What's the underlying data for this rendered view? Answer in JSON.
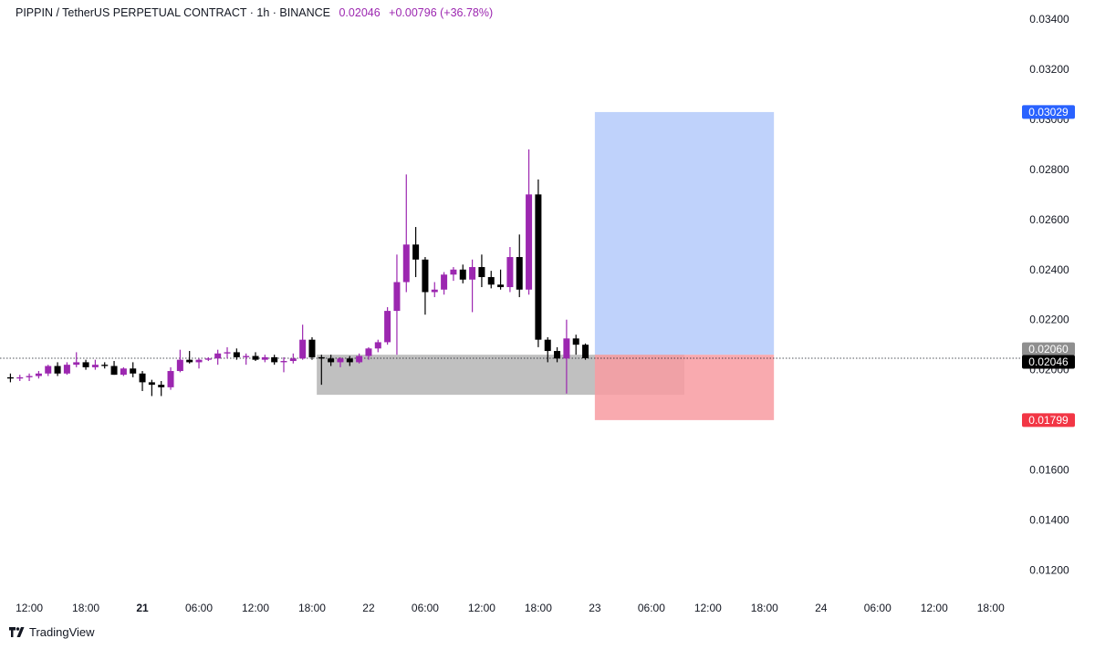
{
  "legend": {
    "symbol_text": "PIPPIN / TetherUS PERPETUAL CONTRACT · 1h · BINANCE",
    "last_price": "0.02046",
    "change": "+0.00796 (+36.78%)"
  },
  "footer": {
    "brand": "TradingView"
  },
  "colors": {
    "up": "#9c27b0",
    "down": "#000000",
    "profit_zone": "#bcd0fb",
    "loss_zone": "#f89ba1",
    "range_box": "#bdbdbd",
    "target_label": "#2962ff",
    "stop_label": "#f23645"
  },
  "chart_data": {
    "type": "candlestick",
    "title": "PIPPIN / TetherUS PERPETUAL CONTRACT · 1h · BINANCE",
    "x_ticks": [
      {
        "label": "12:00",
        "t": -24,
        "bold": false
      },
      {
        "label": "18:00",
        "t": -18,
        "bold": false
      },
      {
        "label": "21",
        "t": -12,
        "bold": true
      },
      {
        "label": "06:00",
        "t": -6,
        "bold": false
      },
      {
        "label": "12:00",
        "t": 0,
        "bold": false
      },
      {
        "label": "18:00",
        "t": 6,
        "bold": false
      },
      {
        "label": "22",
        "t": 12,
        "bold": false
      },
      {
        "label": "06:00",
        "t": 18,
        "bold": false
      },
      {
        "label": "12:00",
        "t": 24,
        "bold": false
      },
      {
        "label": "18:00",
        "t": 30,
        "bold": false
      },
      {
        "label": "23",
        "t": 36,
        "bold": false
      },
      {
        "label": "06:00",
        "t": 42,
        "bold": false
      },
      {
        "label": "12:00",
        "t": 48,
        "bold": false
      },
      {
        "label": "18:00",
        "t": 54,
        "bold": false
      },
      {
        "label": "24",
        "t": 60,
        "bold": false
      },
      {
        "label": "06:00",
        "t": 66,
        "bold": false
      },
      {
        "label": "12:00",
        "t": 72,
        "bold": false
      },
      {
        "label": "18:00",
        "t": 78,
        "bold": false
      }
    ],
    "y_ticks": [
      "0.03400",
      "0.03200",
      "0.03000",
      "0.02800",
      "0.02600",
      "0.02400",
      "0.02200",
      "0.02000",
      "0.01600",
      "0.01400",
      "0.01200"
    ],
    "y_values": [
      0.034,
      0.032,
      0.03,
      0.028,
      0.026,
      0.024,
      0.022,
      0.02,
      0.016,
      0.014,
      0.012
    ],
    "ylim": [
      0.011,
      0.0355
    ],
    "candles": [
      {
        "t": -26,
        "o": 0.0197,
        "h": 0.01985,
        "l": 0.0195,
        "c": 0.01965
      },
      {
        "t": -25,
        "o": 0.01965,
        "h": 0.0198,
        "l": 0.01955,
        "c": 0.0197
      },
      {
        "t": -24,
        "o": 0.0197,
        "h": 0.01985,
        "l": 0.01955,
        "c": 0.01975
      },
      {
        "t": -23,
        "o": 0.01975,
        "h": 0.01995,
        "l": 0.01965,
        "c": 0.01985
      },
      {
        "t": -22,
        "o": 0.01985,
        "h": 0.0202,
        "l": 0.01975,
        "c": 0.02015
      },
      {
        "t": -21,
        "o": 0.02015,
        "h": 0.0203,
        "l": 0.01975,
        "c": 0.01985
      },
      {
        "t": -20,
        "o": 0.01985,
        "h": 0.0203,
        "l": 0.0198,
        "c": 0.0202
      },
      {
        "t": -19,
        "o": 0.0202,
        "h": 0.0207,
        "l": 0.0201,
        "c": 0.0203
      },
      {
        "t": -18,
        "o": 0.0203,
        "h": 0.0204,
        "l": 0.02,
        "c": 0.0201
      },
      {
        "t": -17,
        "o": 0.0201,
        "h": 0.0204,
        "l": 0.02,
        "c": 0.0202
      },
      {
        "t": -16,
        "o": 0.0202,
        "h": 0.0203,
        "l": 0.02005,
        "c": 0.02015
      },
      {
        "t": -15,
        "o": 0.02015,
        "h": 0.02035,
        "l": 0.0198,
        "c": 0.0198
      },
      {
        "t": -14,
        "o": 0.0198,
        "h": 0.0201,
        "l": 0.01975,
        "c": 0.02005
      },
      {
        "t": -13,
        "o": 0.02005,
        "h": 0.0203,
        "l": 0.0197,
        "c": 0.01985
      },
      {
        "t": -12,
        "o": 0.01985,
        "h": 0.01995,
        "l": 0.01915,
        "c": 0.0195
      },
      {
        "t": -11,
        "o": 0.0195,
        "h": 0.0196,
        "l": 0.01895,
        "c": 0.0194
      },
      {
        "t": -10,
        "o": 0.0194,
        "h": 0.01955,
        "l": 0.01895,
        "c": 0.0193
      },
      {
        "t": -9,
        "o": 0.0193,
        "h": 0.0201,
        "l": 0.0192,
        "c": 0.01995
      },
      {
        "t": -8,
        "o": 0.01995,
        "h": 0.0208,
        "l": 0.0199,
        "c": 0.0204
      },
      {
        "t": -7,
        "o": 0.0204,
        "h": 0.02075,
        "l": 0.02025,
        "c": 0.0203
      },
      {
        "t": -6,
        "o": 0.0203,
        "h": 0.02045,
        "l": 0.02005,
        "c": 0.0204
      },
      {
        "t": -5,
        "o": 0.0204,
        "h": 0.0205,
        "l": 0.02035,
        "c": 0.02045
      },
      {
        "t": -4,
        "o": 0.02045,
        "h": 0.0208,
        "l": 0.0202,
        "c": 0.02065
      },
      {
        "t": -3,
        "o": 0.02065,
        "h": 0.0209,
        "l": 0.02045,
        "c": 0.0207
      },
      {
        "t": -2,
        "o": 0.0207,
        "h": 0.02085,
        "l": 0.0204,
        "c": 0.0205
      },
      {
        "t": -1,
        "o": 0.0205,
        "h": 0.02065,
        "l": 0.0202,
        "c": 0.02055
      },
      {
        "t": 0,
        "o": 0.02055,
        "h": 0.0207,
        "l": 0.02035,
        "c": 0.0204
      },
      {
        "t": 1,
        "o": 0.0204,
        "h": 0.0206,
        "l": 0.0203,
        "c": 0.0205
      },
      {
        "t": 2,
        "o": 0.0205,
        "h": 0.0206,
        "l": 0.0202,
        "c": 0.0203
      },
      {
        "t": 3,
        "o": 0.0203,
        "h": 0.0205,
        "l": 0.0199,
        "c": 0.02035
      },
      {
        "t": 4,
        "o": 0.02035,
        "h": 0.02065,
        "l": 0.02025,
        "c": 0.02045
      },
      {
        "t": 5,
        "o": 0.02045,
        "h": 0.0218,
        "l": 0.0204,
        "c": 0.0212
      },
      {
        "t": 6,
        "o": 0.0212,
        "h": 0.0213,
        "l": 0.0204,
        "c": 0.0205
      },
      {
        "t": 7,
        "o": 0.0205,
        "h": 0.0206,
        "l": 0.0194,
        "c": 0.02045
      },
      {
        "t": 8,
        "o": 0.02045,
        "h": 0.0206,
        "l": 0.02015,
        "c": 0.0203
      },
      {
        "t": 9,
        "o": 0.0203,
        "h": 0.0205,
        "l": 0.0201,
        "c": 0.02045
      },
      {
        "t": 10,
        "o": 0.02045,
        "h": 0.02055,
        "l": 0.02015,
        "c": 0.0203
      },
      {
        "t": 11,
        "o": 0.0203,
        "h": 0.02065,
        "l": 0.02025,
        "c": 0.02055
      },
      {
        "t": 12,
        "o": 0.02055,
        "h": 0.0209,
        "l": 0.0204,
        "c": 0.02085
      },
      {
        "t": 13,
        "o": 0.02085,
        "h": 0.0212,
        "l": 0.0207,
        "c": 0.0211
      },
      {
        "t": 14,
        "o": 0.0211,
        "h": 0.0225,
        "l": 0.021,
        "c": 0.02235
      },
      {
        "t": 15,
        "o": 0.02235,
        "h": 0.0246,
        "l": 0.0206,
        "c": 0.0235
      },
      {
        "t": 16,
        "o": 0.0235,
        "h": 0.0278,
        "l": 0.0231,
        "c": 0.025
      },
      {
        "t": 17,
        "o": 0.025,
        "h": 0.0257,
        "l": 0.0237,
        "c": 0.0244
      },
      {
        "t": 18,
        "o": 0.0244,
        "h": 0.0245,
        "l": 0.0222,
        "c": 0.0231
      },
      {
        "t": 19,
        "o": 0.0231,
        "h": 0.0235,
        "l": 0.0229,
        "c": 0.0232
      },
      {
        "t": 20,
        "o": 0.0232,
        "h": 0.0239,
        "l": 0.023,
        "c": 0.0238
      },
      {
        "t": 21,
        "o": 0.0238,
        "h": 0.0241,
        "l": 0.02355,
        "c": 0.024
      },
      {
        "t": 22,
        "o": 0.024,
        "h": 0.0242,
        "l": 0.02345,
        "c": 0.0236
      },
      {
        "t": 23,
        "o": 0.0236,
        "h": 0.0244,
        "l": 0.0223,
        "c": 0.0241
      },
      {
        "t": 24,
        "o": 0.0241,
        "h": 0.0246,
        "l": 0.0233,
        "c": 0.0237
      },
      {
        "t": 25,
        "o": 0.0237,
        "h": 0.02395,
        "l": 0.02325,
        "c": 0.0234
      },
      {
        "t": 26,
        "o": 0.0234,
        "h": 0.024,
        "l": 0.0232,
        "c": 0.0233
      },
      {
        "t": 27,
        "o": 0.0233,
        "h": 0.0249,
        "l": 0.0231,
        "c": 0.0245
      },
      {
        "t": 28,
        "o": 0.0245,
        "h": 0.0254,
        "l": 0.0229,
        "c": 0.0232
      },
      {
        "t": 29,
        "o": 0.0232,
        "h": 0.0288,
        "l": 0.023,
        "c": 0.027
      },
      {
        "t": 30,
        "o": 0.027,
        "h": 0.0276,
        "l": 0.0209,
        "c": 0.0212
      },
      {
        "t": 31,
        "o": 0.0212,
        "h": 0.0213,
        "l": 0.0203,
        "c": 0.02075
      },
      {
        "t": 32,
        "o": 0.02075,
        "h": 0.0209,
        "l": 0.0203,
        "c": 0.02045
      },
      {
        "t": 33,
        "o": 0.02045,
        "h": 0.022,
        "l": 0.01905,
        "c": 0.02125
      },
      {
        "t": 34,
        "o": 0.02125,
        "h": 0.0214,
        "l": 0.0206,
        "c": 0.021
      },
      {
        "t": 35,
        "o": 0.021,
        "h": 0.02105,
        "l": 0.0204,
        "c": 0.02046
      }
    ],
    "last_price": 0.02046,
    "range_box": {
      "t0": 6.5,
      "t1": 45.5,
      "top": 0.0206,
      "bottom": 0.019
    },
    "position": {
      "t0": 36,
      "t1": 55,
      "entry": 0.0206,
      "target": 0.03029,
      "stop": 0.01799
    },
    "price_labels": [
      {
        "text": "0.03029",
        "value": 0.03029,
        "role": "target"
      },
      {
        "text": "0.02060",
        "value": 0.0206,
        "role": "entry"
      },
      {
        "text": "0.02046",
        "value": 0.02046,
        "role": "last"
      },
      {
        "text": "0.01799",
        "value": 0.01799,
        "role": "stop"
      }
    ]
  }
}
